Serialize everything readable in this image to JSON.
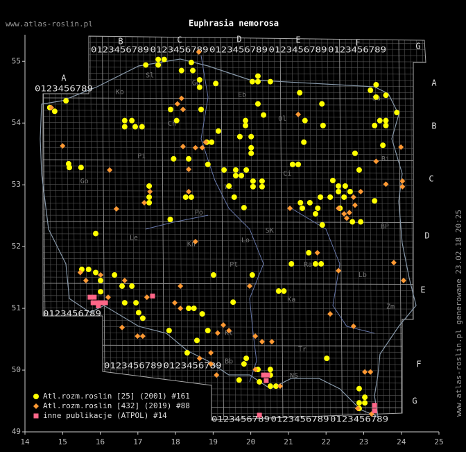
{
  "chart_data": {
    "type": "scatter",
    "title": "Euphrasia nemorosa",
    "site": "www.atlas-roslin.pl",
    "side_note": "www.atlas-roslin.pl generowane 23.02.18 20:25",
    "xlim": [
      14,
      25
    ],
    "ylim": [
      49,
      55.43
    ],
    "xticks": [
      14,
      15,
      16,
      17,
      18,
      19,
      20,
      21,
      22,
      23,
      24,
      25
    ],
    "yticks": [
      49,
      50,
      51,
      52,
      53,
      54,
      55
    ],
    "grid_letters": [
      "A",
      "B",
      "C",
      "D",
      "E",
      "F",
      "G"
    ],
    "grid_digits": "0123456789",
    "regions": [
      {
        "label": "Ko",
        "lon": 16.52,
        "lat": 54.5
      },
      {
        "label": "Gd",
        "lon": 18.55,
        "lat": 54.65
      },
      {
        "label": "Eb",
        "lon": 19.77,
        "lat": 54.46
      },
      {
        "label": "Ol",
        "lon": 20.84,
        "lat": 54.07
      },
      {
        "label": "Su",
        "lon": 23.34,
        "lat": 54.4
      },
      {
        "label": "Sl",
        "lon": 17.32,
        "lat": 54.77
      },
      {
        "label": "Ch",
        "lon": 17.91,
        "lat": 53.99
      },
      {
        "label": "Pi",
        "lon": 17.1,
        "lat": 53.46
      },
      {
        "label": "Ci",
        "lon": 20.97,
        "lat": 53.18
      },
      {
        "label": "Bi",
        "lon": 23.58,
        "lat": 53.42
      },
      {
        "label": "Wl",
        "lon": 19.42,
        "lat": 52.97
      },
      {
        "label": "BP",
        "lon": 23.56,
        "lat": 52.33
      },
      {
        "label": "Le",
        "lon": 16.89,
        "lat": 52.14
      },
      {
        "label": "Lo",
        "lon": 19.86,
        "lat": 52.1
      },
      {
        "label": "SK",
        "lon": 20.5,
        "lat": 52.26
      },
      {
        "label": "Kn",
        "lon": 18.42,
        "lat": 52.04
      },
      {
        "label": "Pt",
        "lon": 19.55,
        "lat": 51.71
      },
      {
        "label": "Ra",
        "lon": 21.52,
        "lat": 51.71
      },
      {
        "label": "Lb",
        "lon": 22.97,
        "lat": 51.54
      },
      {
        "label": "Ka",
        "lon": 21.08,
        "lat": 51.14
      },
      {
        "label": "Zm",
        "lon": 23.71,
        "lat": 51.03
      },
      {
        "label": "Kt",
        "lon": 19.42,
        "lat": 50.6
      },
      {
        "label": "Tr",
        "lon": 21.37,
        "lat": 50.34
      },
      {
        "label": "Bb",
        "lon": 19.42,
        "lat": 50.14
      },
      {
        "label": "NS",
        "lon": 21.15,
        "lat": 49.91
      },
      {
        "label": "Po",
        "lon": 18.62,
        "lat": 52.55
      },
      {
        "label": "Go",
        "lon": 15.58,
        "lat": 53.06
      }
    ],
    "series": [
      {
        "name": "Atl.rozm.roslin [25] (2001) #161",
        "color": "#ffff00",
        "shape": "circle",
        "x": [
          15.09,
          14.79,
          14.66,
          15.16,
          15.18,
          15.49,
          17.21,
          17.54,
          17.7,
          17.54,
          18.16,
          18.42,
          18.46,
          18.64,
          18.64,
          19.07,
          17.87,
          18.03,
          18.68,
          16.65,
          16.65,
          16.84,
          16.93,
          17.11,
          19.14,
          18.83,
          18.96,
          17.95,
          18.35,
          18.86,
          19.29,
          19.6,
          19.75,
          19.6,
          19.88,
          20.06,
          20.3,
          20.3,
          20.06,
          19.42,
          19.56,
          19.82,
          19.86,
          19.86,
          20.01,
          20.01,
          20.01,
          19.71,
          20.19,
          20.19,
          20.04,
          20.52,
          20.19,
          20.34,
          21.3,
          21.89,
          21.44,
          21.92,
          21.41,
          21.11,
          21.26,
          23.18,
          23.33,
          23.33,
          23.59,
          23.43,
          23.59,
          23.59,
          23.29,
          23.88,
          23.51,
          22.77,
          22.88,
          22.18,
          22.33,
          22.51,
          22.64,
          22.33,
          22.48,
          22.11,
          21.85,
          21.78,
          22.37,
          22.7,
          22.92,
          23.29,
          21.32,
          21.57,
          21.72,
          21.9,
          21.37,
          17.3,
          17.3,
          17.3,
          18.27,
          18.42,
          17.86,
          15.88,
          21.54,
          21.72,
          21.87,
          21.08,
          20.04,
          19.01,
          20.74,
          20.88,
          19.53,
          18.35,
          18.49,
          18.71,
          16.65,
          16.95,
          16.38,
          15.51,
          15.69,
          15.88,
          16.01,
          16.01,
          16.58,
          16.84,
          17.02,
          17.13,
          17.83,
          18.31,
          18.57,
          18.86,
          19.88,
          19.82,
          20.19,
          19.69,
          20.52,
          20.52,
          20.52,
          20.67,
          20.23,
          22.02,
          22.88,
          22.88,
          23.03,
          23.03,
          22.88
        ],
        "values": [
          54.36,
          54.19,
          54.25,
          53.34,
          53.28,
          53.28,
          54.94,
          55.03,
          55.03,
          54.94,
          54.85,
          54.98,
          54.85,
          54.7,
          54.58,
          54.64,
          54.22,
          54.04,
          54.22,
          54.04,
          53.94,
          54.04,
          53.94,
          53.94,
          53.87,
          53.69,
          53.69,
          53.42,
          53.42,
          53.33,
          53.24,
          53.24,
          53.15,
          53.15,
          53.24,
          53.06,
          53.06,
          52.97,
          52.97,
          52.98,
          52.8,
          52.63,
          54.04,
          53.96,
          53.78,
          53.6,
          53.51,
          53.78,
          54.76,
          54.67,
          54.67,
          54.67,
          54.31,
          54.13,
          54.49,
          54.31,
          54.04,
          53.96,
          53.69,
          53.33,
          53.33,
          54.53,
          54.62,
          54.42,
          54.45,
          54.04,
          54.04,
          53.96,
          53.96,
          54.17,
          53.64,
          53.51,
          53.24,
          53.07,
          52.98,
          52.98,
          52.89,
          52.89,
          52.8,
          52.8,
          52.8,
          52.62,
          52.62,
          52.4,
          52.4,
          52.74,
          52.71,
          52.71,
          52.53,
          52.35,
          52.62,
          52.98,
          52.8,
          52.71,
          52.8,
          52.8,
          52.44,
          52.21,
          51.9,
          51.72,
          51.72,
          51.72,
          51.54,
          51.54,
          51.28,
          51.28,
          51.1,
          51.0,
          51.0,
          50.91,
          51.09,
          51.09,
          51.54,
          51.63,
          51.63,
          51.58,
          51.45,
          51.27,
          51.36,
          51.36,
          50.93,
          50.84,
          50.64,
          50.28,
          50.48,
          50.64,
          50.19,
          50.1,
          50.01,
          49.84,
          50.01,
          49.92,
          49.74,
          49.74,
          49.81,
          50.19,
          49.38,
          49.47,
          49.47,
          49.56,
          49.7
        ]
      },
      {
        "name": "Atl.rozm.roslin [432] (2019) #88",
        "color": "#ff9933",
        "shape": "diamond",
        "x": [
          14.7,
          15.0,
          16.25,
          18.16,
          18.05,
          18.2,
          18.62,
          18.53,
          18.71,
          18.8,
          18.2,
          18.35,
          18.35,
          17.32,
          17.17,
          16.43,
          18.53,
          21.26,
          21.04,
          22.33,
          22.48,
          22.55,
          22.62,
          22.73,
          22.77,
          22.92,
          23.33,
          23.59,
          24.03,
          24.03,
          23.99,
          23.8,
          24.06,
          21.77,
          22.33,
          22.11,
          22.73,
          19.97,
          18.13,
          16.65,
          15.47,
          15.62,
          16.01,
          17.24,
          16.21,
          16.58,
          16.99,
          17.13,
          17.98,
          18.13,
          19.27,
          19.42,
          19.12,
          18.64,
          18.94,
          18.94,
          19.09,
          20.12,
          20.3,
          20.56,
          20.12,
          20.78,
          23.03,
          23.18,
          22.84,
          23.21
        ],
        "values": [
          54.25,
          53.63,
          53.24,
          54.4,
          54.31,
          54.22,
          55.15,
          53.6,
          53.6,
          53.69,
          53.62,
          53.25,
          52.89,
          52.89,
          52.71,
          52.61,
          52.08,
          54.14,
          52.62,
          52.62,
          52.53,
          52.46,
          52.55,
          52.8,
          52.67,
          52.89,
          53.38,
          53.01,
          53.06,
          52.97,
          53.61,
          51.74,
          51.45,
          51.9,
          51.61,
          50.91,
          50.71,
          51.36,
          51.36,
          51.45,
          51.58,
          51.45,
          51.54,
          51.18,
          51.18,
          50.69,
          50.55,
          50.55,
          51.09,
          51.0,
          50.73,
          50.64,
          50.6,
          50.19,
          50.28,
          50.1,
          49.92,
          50.55,
          50.46,
          50.46,
          50.01,
          49.74,
          49.97,
          49.97,
          49.38,
          49.29
        ]
      },
      {
        "name": "inne publikacje (ATPOL) #14",
        "color": "#ff6688",
        "shape": "square",
        "x": [
          15.73,
          15.84,
          15.92,
          16.03,
          16.14,
          15.95,
          15.81,
          17.39,
          20.34,
          20.45,
          20.41,
          20.23,
          23.29,
          23.29
        ],
        "values": [
          51.18,
          51.18,
          51.09,
          51.09,
          51.09,
          51.04,
          51.09,
          51.2,
          49.92,
          49.92,
          49.83,
          49.27,
          49.43,
          49.34
        ]
      }
    ]
  }
}
